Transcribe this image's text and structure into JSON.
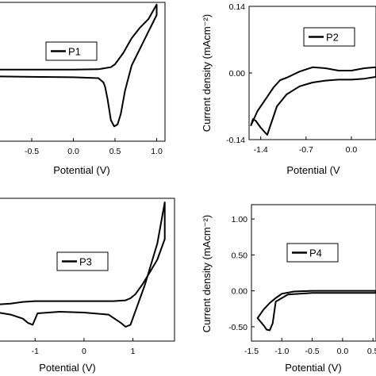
{
  "chart_data": [
    {
      "type": "line",
      "id": "P1",
      "legend": [
        "P1"
      ],
      "xlabel": "Potential (V)",
      "ylabel": "",
      "xticks": [
        "-0.5",
        "0.0",
        "0.5",
        "1.0"
      ],
      "yticks": [],
      "xlim": [
        -0.9,
        1.1
      ],
      "ylim": [
        -0.16,
        0.17
      ],
      "legend_position": "center",
      "series": [
        {
          "x": [
            -0.9,
            -0.5,
            0.0,
            0.3,
            0.45,
            0.5,
            0.6,
            0.7,
            0.8,
            0.9,
            1.0,
            1.0,
            0.95,
            0.9,
            0.8,
            0.7,
            0.62,
            0.57,
            0.53,
            0.49,
            0.45,
            0.41,
            0.38,
            0.36,
            0.3,
            0.0,
            -0.5,
            -0.9
          ],
          "y": [
            0.01,
            0.01,
            0.01,
            0.011,
            0.016,
            0.023,
            0.05,
            0.085,
            0.11,
            0.13,
            0.165,
            0.14,
            0.12,
            0.1,
            0.06,
            0.02,
            -0.04,
            -0.095,
            -0.12,
            -0.125,
            -0.11,
            -0.06,
            -0.03,
            -0.02,
            -0.01,
            -0.008,
            -0.007,
            -0.006
          ]
        }
      ]
    },
    {
      "type": "line",
      "id": "P2",
      "legend": [
        "P2"
      ],
      "xlabel": "Potential (V",
      "ylabel": "Current density (mAcm⁻²)",
      "xticks": [
        "-1.4",
        "-0.7",
        "0.0"
      ],
      "yticks": [
        "0.14",
        "0.00",
        "-0.14"
      ],
      "xlim": [
        -1.58,
        0.38
      ],
      "ylim": [
        -0.14,
        0.14
      ],
      "legend_position": "top-right",
      "series": [
        {
          "x": [
            -1.55,
            -1.52,
            -1.48,
            -1.4,
            -1.3,
            -1.15,
            -1.0,
            -0.8,
            -0.6,
            -0.4,
            -0.2,
            0.0,
            0.2,
            0.38,
            0.38,
            0.2,
            0.0,
            -0.2,
            -0.4,
            -0.6,
            -0.8,
            -1.0,
            -1.1,
            -1.2,
            -1.25,
            -1.3,
            -1.35,
            -1.4,
            -1.45,
            -1.5,
            -1.55
          ],
          "y": [
            -0.11,
            -0.097,
            -0.1,
            -0.115,
            -0.13,
            -0.07,
            -0.045,
            -0.028,
            -0.02,
            -0.016,
            -0.014,
            -0.014,
            -0.012,
            -0.008,
            0.012,
            0.01,
            0.005,
            0.005,
            0.01,
            0.012,
            0.003,
            -0.01,
            -0.015,
            -0.03,
            -0.04,
            -0.05,
            -0.06,
            -0.07,
            -0.08,
            -0.095,
            -0.11
          ]
        }
      ]
    },
    {
      "type": "line",
      "id": "P3",
      "legend": [
        "P3"
      ],
      "xlabel": "Potential (V)",
      "ylabel": "",
      "xticks": [
        "-1",
        "0",
        "1"
      ],
      "yticks": [],
      "xlim": [
        -1.75,
        1.85
      ],
      "ylim": [
        -0.1,
        0.25
      ],
      "legend_position": "center",
      "series": [
        {
          "x": [
            -1.75,
            -1.5,
            -1.25,
            -1.15,
            -1.05,
            -0.95,
            -0.5,
            0.0,
            0.5,
            0.75,
            0.85,
            0.95,
            1.1,
            1.25,
            1.5,
            1.65,
            1.65,
            1.5,
            1.35,
            1.2,
            1.05,
            0.95,
            0.85,
            0.6,
            0.3,
            0.0,
            -0.5,
            -0.75,
            -1.0,
            -1.25,
            -1.5,
            -1.75
          ],
          "y": [
            -0.03,
            -0.035,
            -0.045,
            -0.055,
            -0.06,
            -0.032,
            -0.028,
            -0.03,
            -0.035,
            -0.055,
            -0.065,
            -0.06,
            -0.01,
            0.04,
            0.14,
            0.24,
            0.15,
            0.1,
            0.07,
            0.04,
            0.015,
            0.005,
            0.0,
            -0.002,
            -0.002,
            -0.002,
            -0.002,
            -0.002,
            -0.002,
            -0.004,
            -0.008,
            -0.01
          ]
        }
      ]
    },
    {
      "type": "line",
      "id": "P4",
      "legend": [
        "P4"
      ],
      "xlabel": "Potential (V)",
      "ylabel": "Current density (mAcm⁻²)",
      "xticks": [
        "-1.5",
        "-1.0",
        "-0.5",
        "0.0",
        "0.5"
      ],
      "yticks": [
        "1.00",
        "0.50",
        "0.00",
        "-0.50"
      ],
      "xlim": [
        -1.5,
        0.55
      ],
      "ylim": [
        -0.7,
        1.2
      ],
      "legend_position": "top-right",
      "series": [
        {
          "x": [
            -1.4,
            -1.35,
            -1.3,
            -1.25,
            -1.2,
            -1.15,
            -1.1,
            -0.9,
            -0.5,
            0.0,
            0.3,
            0.55,
            0.55,
            0.3,
            0.0,
            -0.5,
            -0.8,
            -1.0,
            -1.05,
            -1.1,
            -1.2,
            -1.3,
            -1.4
          ],
          "y": [
            -0.38,
            -0.43,
            -0.48,
            -0.54,
            -0.55,
            -0.45,
            -0.15,
            -0.05,
            -0.03,
            -0.03,
            -0.03,
            -0.03,
            0.0,
            0.0,
            0.0,
            0.0,
            -0.01,
            -0.04,
            -0.07,
            -0.1,
            -0.17,
            -0.26,
            -0.38
          ]
        }
      ]
    }
  ]
}
